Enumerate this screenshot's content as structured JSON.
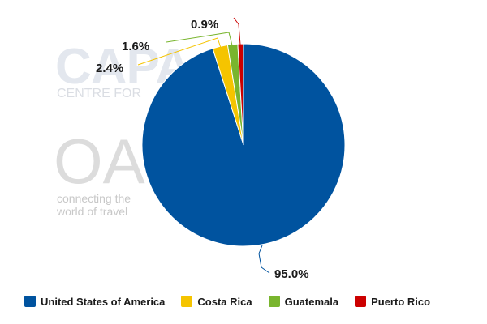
{
  "watermarks": {
    "capa_logo": "CAPA",
    "capa_sub": "CENTRE FOR",
    "oag_logo": "OAG",
    "oag_tag_1": "connecting the",
    "oag_tag_2": "world of travel"
  },
  "chart_data": {
    "type": "pie",
    "title": "",
    "legend_position": "bottom",
    "slices": [
      {
        "name": "United States of America",
        "value": 95.0,
        "label": "95.0%",
        "color": "#00539f"
      },
      {
        "name": "Costa Rica",
        "value": 2.4,
        "label": "2.4%",
        "color": "#f5c400"
      },
      {
        "name": "Guatemala",
        "value": 1.6,
        "label": "1.6%",
        "color": "#79b52e"
      },
      {
        "name": "Puerto Rico",
        "value": 0.9,
        "label": "0.9%",
        "color": "#cc0000"
      }
    ]
  }
}
